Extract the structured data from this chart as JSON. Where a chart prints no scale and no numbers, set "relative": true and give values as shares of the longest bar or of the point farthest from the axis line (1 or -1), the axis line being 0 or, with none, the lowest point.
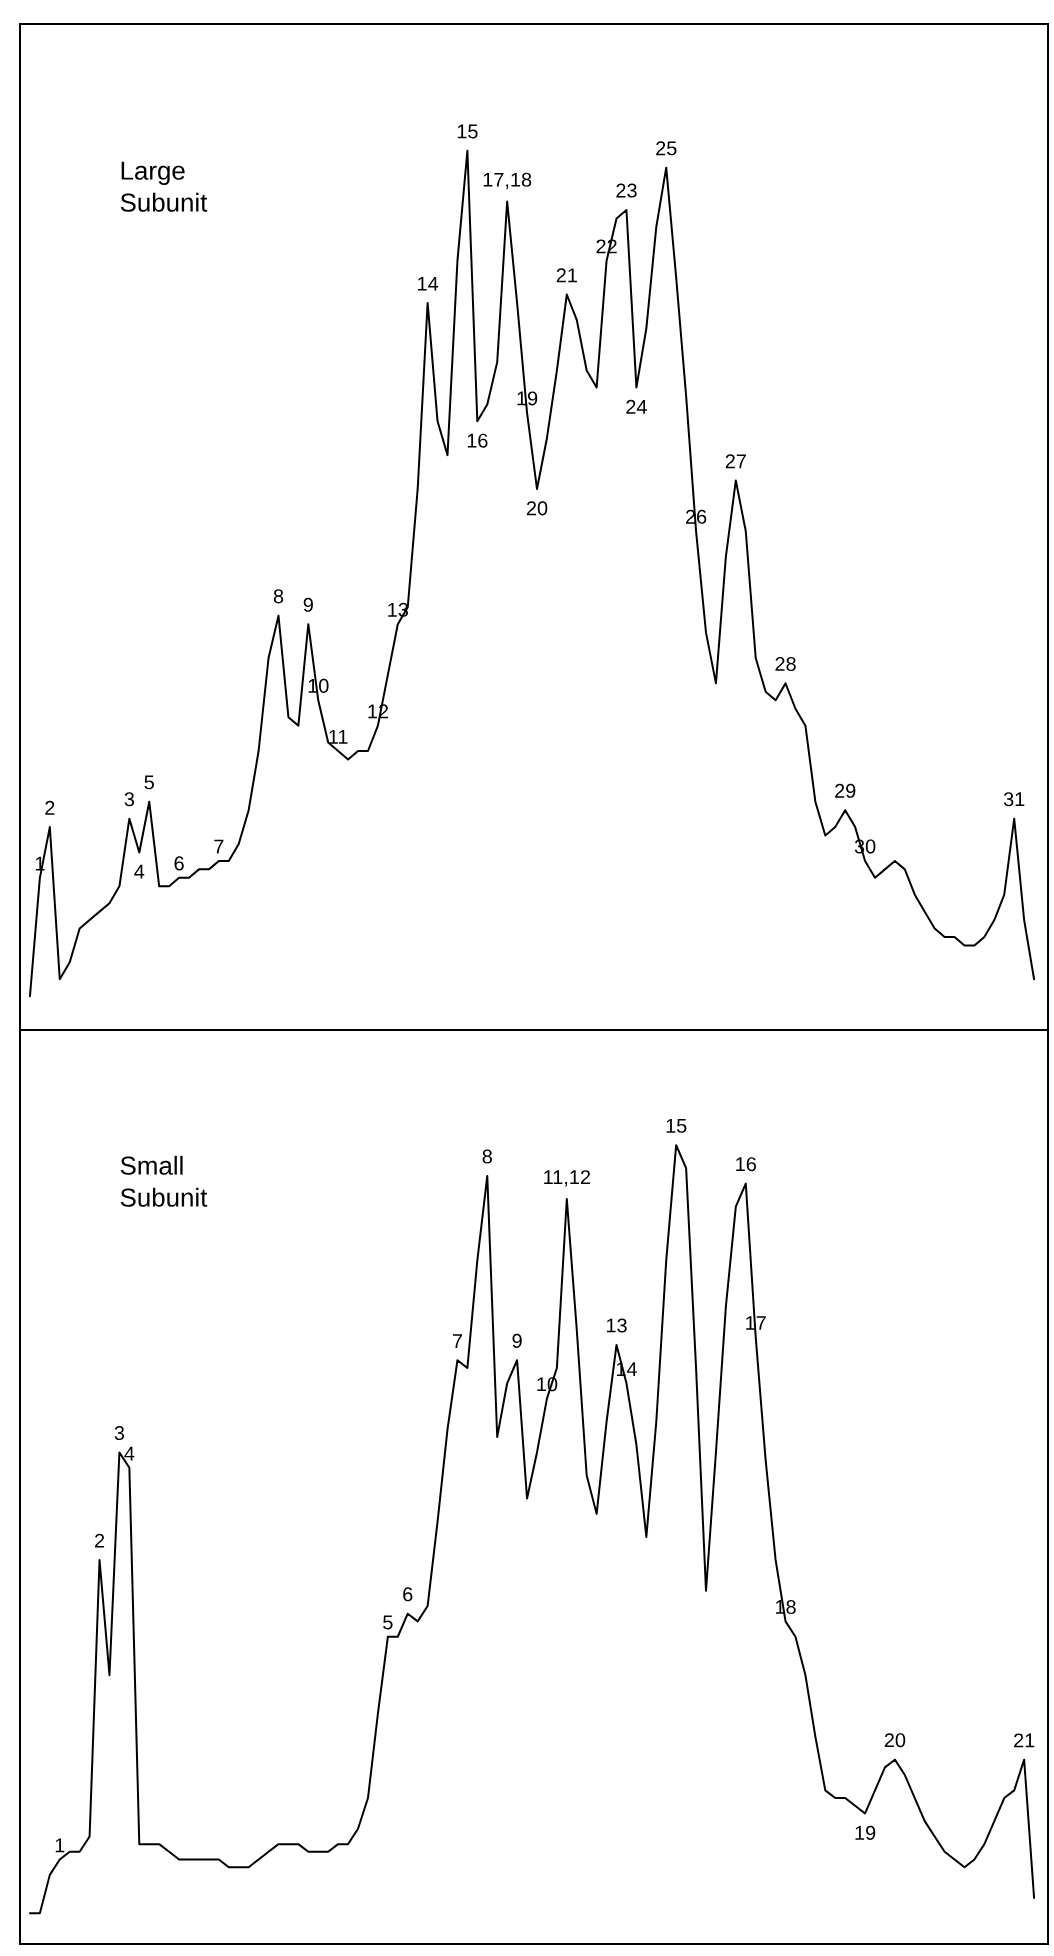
{
  "chart_data": [
    {
      "type": "line",
      "title": "Large Subunit",
      "relative": true,
      "tick_labels": false,
      "color": "#000000",
      "categories": [
        null,
        null,
        null,
        null,
        null,
        null,
        null,
        null,
        null,
        null,
        null,
        null,
        null,
        null,
        null,
        null,
        null,
        null,
        null,
        null,
        null,
        null,
        null,
        null,
        null,
        null,
        null,
        null,
        null,
        null,
        null,
        null,
        null,
        null,
        null,
        null,
        null,
        null,
        null,
        null,
        null,
        null,
        null,
        null,
        null,
        null,
        null,
        null,
        null,
        null,
        null,
        null,
        null,
        null,
        null,
        null,
        null,
        null,
        null,
        null,
        null,
        null,
        null,
        null,
        null,
        null,
        null,
        null,
        null,
        null,
        null,
        null,
        null,
        null,
        null,
        null,
        null,
        null,
        null,
        null,
        null,
        null,
        null,
        null,
        null,
        null,
        null,
        null,
        null,
        null,
        null,
        null,
        null,
        null,
        null,
        null,
        null,
        null,
        null,
        null,
        null,
        null
      ],
      "values": [
        0,
        0.14,
        0.2,
        0.02,
        0.04,
        0.08,
        0.09,
        0.1,
        0.11,
        0.13,
        0.21,
        0.17,
        0.23,
        0.13,
        0.13,
        0.14,
        0.14,
        0.15,
        0.15,
        0.16,
        0.16,
        0.18,
        0.22,
        0.29,
        0.4,
        0.45,
        0.33,
        0.32,
        0.44,
        0.35,
        0.3,
        0.29,
        0.28,
        0.29,
        0.29,
        0.32,
        0.38,
        0.44,
        0.46,
        0.6,
        0.82,
        0.68,
        0.64,
        0.87,
        1.0,
        0.68,
        0.7,
        0.75,
        0.94,
        0.82,
        0.69,
        0.6,
        0.66,
        0.74,
        0.83,
        0.8,
        0.74,
        0.72,
        0.87,
        0.92,
        0.93,
        0.72,
        0.79,
        0.91,
        0.98,
        0.85,
        0.71,
        0.55,
        0.43,
        0.37,
        0.52,
        0.61,
        0.55,
        0.4,
        0.36,
        0.35,
        0.37,
        0.34,
        0.32,
        0.23,
        0.19,
        0.2,
        0.22,
        0.2,
        0.16,
        0.14,
        0.15,
        0.16,
        0.15,
        0.12,
        0.1,
        0.08,
        0.07,
        0.07,
        0.06,
        0.06,
        0.07,
        0.09,
        0.12,
        0.21,
        0.09,
        0.02
      ],
      "annotations": [
        {
          "text": "1",
          "y": 0.14
        },
        {
          "text": "2",
          "y": 0.2
        },
        {
          "text": "3",
          "y": 0.21
        },
        {
          "text": "4",
          "y": 0.17
        },
        {
          "text": "5",
          "y": 0.23
        },
        {
          "text": "6",
          "y": 0.14
        },
        {
          "text": "7",
          "y": 0.16
        },
        {
          "text": "8",
          "y": 0.45
        },
        {
          "text": "9",
          "y": 0.44
        },
        {
          "text": "10",
          "y": 0.35
        },
        {
          "text": "11",
          "y": 0.29
        },
        {
          "text": "12",
          "y": 0.32
        },
        {
          "text": "13",
          "y": 0.44
        },
        {
          "text": "14",
          "y": 0.82
        },
        {
          "text": "15",
          "y": 1.0
        },
        {
          "text": "16",
          "y": 0.68
        },
        {
          "text": "17,18",
          "y": 0.94
        },
        {
          "text": "19",
          "y": 0.69
        },
        {
          "text": "20",
          "y": 0.6
        },
        {
          "text": "21",
          "y": 0.83
        },
        {
          "text": "22",
          "y": 0.87
        },
        {
          "text": "23",
          "y": 0.93
        },
        {
          "text": "24",
          "y": 0.72
        },
        {
          "text": "25",
          "y": 0.98
        },
        {
          "text": "26",
          "y": 0.55
        },
        {
          "text": "27",
          "y": 0.61
        },
        {
          "text": "28",
          "y": 0.37
        },
        {
          "text": "29",
          "y": 0.22
        },
        {
          "text": "30",
          "y": 0.16
        },
        {
          "text": "31",
          "y": 0.21
        }
      ]
    },
    {
      "type": "line",
      "title": "Small Subunit",
      "relative": true,
      "tick_labels": false,
      "color": "#000000",
      "categories": [
        null,
        null,
        null,
        null,
        null,
        null,
        null,
        null,
        null,
        null,
        null,
        null,
        null,
        null,
        null,
        null,
        null,
        null,
        null,
        null,
        null,
        null,
        null,
        null,
        null,
        null,
        null,
        null,
        null,
        null,
        null,
        null,
        null,
        null,
        null,
        null,
        null,
        null,
        null,
        null,
        null,
        null,
        null,
        null,
        null,
        null,
        null,
        null,
        null,
        null,
        null,
        null,
        null,
        null,
        null,
        null,
        null,
        null,
        null,
        null,
        null,
        null,
        null,
        null,
        null,
        null,
        null,
        null,
        null,
        null,
        null,
        null,
        null,
        null,
        null,
        null,
        null,
        null,
        null,
        null,
        null,
        null,
        null,
        null,
        null,
        null,
        null,
        null,
        null,
        null,
        null,
        null,
        null,
        null,
        null,
        null,
        null,
        null,
        null,
        null,
        null,
        null
      ],
      "values": [
        0,
        0,
        0.05,
        0.07,
        0.08,
        0.08,
        0.1,
        0.46,
        0.31,
        0.6,
        0.58,
        0.09,
        0.09,
        0.09,
        0.08,
        0.07,
        0.07,
        0.07,
        0.07,
        0.07,
        0.06,
        0.06,
        0.06,
        0.07,
        0.08,
        0.09,
        0.09,
        0.09,
        0.08,
        0.08,
        0.08,
        0.09,
        0.09,
        0.11,
        0.15,
        0.26,
        0.36,
        0.36,
        0.39,
        0.38,
        0.4,
        0.51,
        0.63,
        0.72,
        0.71,
        0.85,
        0.96,
        0.62,
        0.69,
        0.72,
        0.54,
        0.6,
        0.67,
        0.71,
        0.93,
        0.76,
        0.57,
        0.52,
        0.64,
        0.74,
        0.69,
        0.61,
        0.49,
        0.64,
        0.85,
        1.0,
        0.97,
        0.71,
        0.42,
        0.6,
        0.79,
        0.92,
        0.95,
        0.75,
        0.59,
        0.46,
        0.38,
        0.36,
        0.31,
        0.23,
        0.16,
        0.15,
        0.15,
        0.14,
        0.13,
        0.16,
        0.19,
        0.2,
        0.18,
        0.15,
        0.12,
        0.1,
        0.08,
        0.07,
        0.06,
        0.07,
        0.09,
        0.12,
        0.15,
        0.16,
        0.2,
        0.02
      ],
      "annotations": [
        {
          "text": "1",
          "y": 0.07
        },
        {
          "text": "2",
          "y": 0.46
        },
        {
          "text": "3",
          "y": 0.6
        },
        {
          "text": "4",
          "y": 0.58
        },
        {
          "text": "5",
          "y": 0.36
        },
        {
          "text": "6",
          "y": 0.39
        },
        {
          "text": "7",
          "y": 0.72
        },
        {
          "text": "8",
          "y": 0.96
        },
        {
          "text": "9",
          "y": 0.72
        },
        {
          "text": "10",
          "y": 0.67
        },
        {
          "text": "11,12",
          "y": 0.93
        },
        {
          "text": "13",
          "y": 0.74
        },
        {
          "text": "14",
          "y": 0.69
        },
        {
          "text": "15",
          "y": 1.0
        },
        {
          "text": "16",
          "y": 0.95
        },
        {
          "text": "17",
          "y": 0.75
        },
        {
          "text": "18",
          "y": 0.38
        },
        {
          "text": "19",
          "y": 0.13
        },
        {
          "text": "20",
          "y": 0.2
        },
        {
          "text": "21",
          "y": 0.2
        }
      ]
    }
  ]
}
